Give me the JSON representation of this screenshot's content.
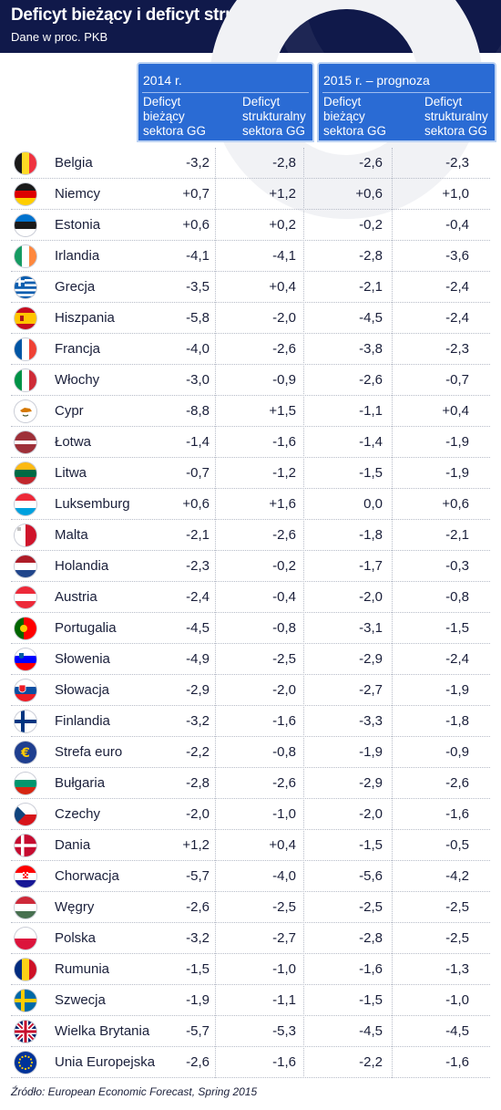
{
  "header": {
    "title": "Deficyt bieżący i deficyt strukturalny",
    "subtitle": "Dane w proc. PKB"
  },
  "columns": {
    "group_2014": "2014 r.",
    "group_2015": "2015 r. – prognoza",
    "col_current": [
      "Deficyt",
      "bieżący",
      "sektora GG"
    ],
    "col_structural": [
      "Deficyt",
      "strukturalny",
      "sektora GG"
    ]
  },
  "source": "Źródło: European Economic Forecast, Spring 2015",
  "chart_data": {
    "type": "table",
    "columns": [
      "2014 r. – Deficyt bieżący sektora GG",
      "2014 r. – Deficyt strukturalny sektora GG",
      "2015 r. – prognoza – Deficyt bieżący sektora GG",
      "2015 r. – prognoza – Deficyt strukturalny sektora GG"
    ],
    "rows": [
      {
        "country": "Belgia",
        "flag": "be-flag",
        "values": [
          "-3,2",
          "-2,8",
          "-2,6",
          "-2,3"
        ]
      },
      {
        "country": "Niemcy",
        "flag": "de-flag",
        "values": [
          "+0,7",
          "+1,2",
          "+0,6",
          "+1,0"
        ]
      },
      {
        "country": "Estonia",
        "flag": "ee-flag",
        "values": [
          "+0,6",
          "+0,2",
          "-0,2",
          "-0,4"
        ]
      },
      {
        "country": "Irlandia",
        "flag": "ie-flag",
        "values": [
          "-4,1",
          "-4,1",
          "-2,8",
          "-3,6"
        ]
      },
      {
        "country": "Grecja",
        "flag": "gr-flag",
        "values": [
          "-3,5",
          "+0,4",
          "-2,1",
          "-2,4"
        ]
      },
      {
        "country": "Hiszpania",
        "flag": "es-flag",
        "values": [
          "-5,8",
          "-2,0",
          "-4,5",
          "-2,4"
        ]
      },
      {
        "country": "Francja",
        "flag": "fr-flag",
        "values": [
          "-4,0",
          "-2,6",
          "-3,8",
          "-2,3"
        ]
      },
      {
        "country": "Włochy",
        "flag": "it-flag",
        "values": [
          "-3,0",
          "-0,9",
          "-2,6",
          "-0,7"
        ]
      },
      {
        "country": "Cypr",
        "flag": "cy-flag",
        "values": [
          "-8,8",
          "+1,5",
          "-1,1",
          "+0,4"
        ]
      },
      {
        "country": "Łotwa",
        "flag": "lv-flag",
        "values": [
          "-1,4",
          "-1,6",
          "-1,4",
          "-1,9"
        ]
      },
      {
        "country": "Litwa",
        "flag": "lt-flag",
        "values": [
          "-0,7",
          "-1,2",
          "-1,5",
          "-1,9"
        ]
      },
      {
        "country": "Luksemburg",
        "flag": "lu-flag",
        "values": [
          "+0,6",
          "+1,6",
          "0,0",
          "+0,6"
        ]
      },
      {
        "country": "Malta",
        "flag": "mt-flag",
        "values": [
          "-2,1",
          "-2,6",
          "-1,8",
          "-2,1"
        ]
      },
      {
        "country": "Holandia",
        "flag": "nl-flag",
        "values": [
          "-2,3",
          "-0,2",
          "-1,7",
          "-0,3"
        ]
      },
      {
        "country": "Austria",
        "flag": "at-flag",
        "values": [
          "-2,4",
          "-0,4",
          "-2,0",
          "-0,8"
        ]
      },
      {
        "country": "Portugalia",
        "flag": "pt-flag",
        "values": [
          "-4,5",
          "-0,8",
          "-3,1",
          "-1,5"
        ]
      },
      {
        "country": "Słowenia",
        "flag": "si-flag",
        "values": [
          "-4,9",
          "-2,5",
          "-2,9",
          "-2,4"
        ]
      },
      {
        "country": "Słowacja",
        "flag": "sk-flag",
        "values": [
          "-2,9",
          "-2,0",
          "-2,7",
          "-1,9"
        ]
      },
      {
        "country": "Finlandia",
        "flag": "fi-flag",
        "values": [
          "-3,2",
          "-1,6",
          "-3,3",
          "-1,8"
        ]
      },
      {
        "country": "Strefa euro",
        "flag": "euro-flag",
        "values": [
          "-2,2",
          "-0,8",
          "-1,9",
          "-0,9"
        ]
      },
      {
        "country": "Bułgaria",
        "flag": "bg-flag",
        "values": [
          "-2,8",
          "-2,6",
          "-2,9",
          "-2,6"
        ]
      },
      {
        "country": "Czechy",
        "flag": "cz-flag",
        "values": [
          "-2,0",
          "-1,0",
          "-2,0",
          "-1,6"
        ]
      },
      {
        "country": "Dania",
        "flag": "dk-flag",
        "values": [
          "+1,2",
          "+0,4",
          "-1,5",
          "-0,5"
        ]
      },
      {
        "country": "Chorwacja",
        "flag": "hr-flag",
        "values": [
          "-5,7",
          "-4,0",
          "-5,6",
          "-4,2"
        ]
      },
      {
        "country": "Węgry",
        "flag": "hu-flag",
        "values": [
          "-2,6",
          "-2,5",
          "-2,5",
          "-2,5"
        ]
      },
      {
        "country": "Polska",
        "flag": "pl-flag",
        "values": [
          "-3,2",
          "-2,7",
          "-2,8",
          "-2,5"
        ]
      },
      {
        "country": "Rumunia",
        "flag": "ro-flag",
        "values": [
          "-1,5",
          "-1,0",
          "-1,6",
          "-1,3"
        ]
      },
      {
        "country": "Szwecja",
        "flag": "se-flag",
        "values": [
          "-1,9",
          "-1,1",
          "-1,5",
          "-1,0"
        ]
      },
      {
        "country": "Wielka Brytania",
        "flag": "gb-flag",
        "values": [
          "-5,7",
          "-5,3",
          "-4,5",
          "-4,5"
        ]
      },
      {
        "country": "Unia Europejska",
        "flag": "eu-flag",
        "values": [
          "-2,6",
          "-1,6",
          "-2,2",
          "-1,6"
        ]
      }
    ]
  }
}
